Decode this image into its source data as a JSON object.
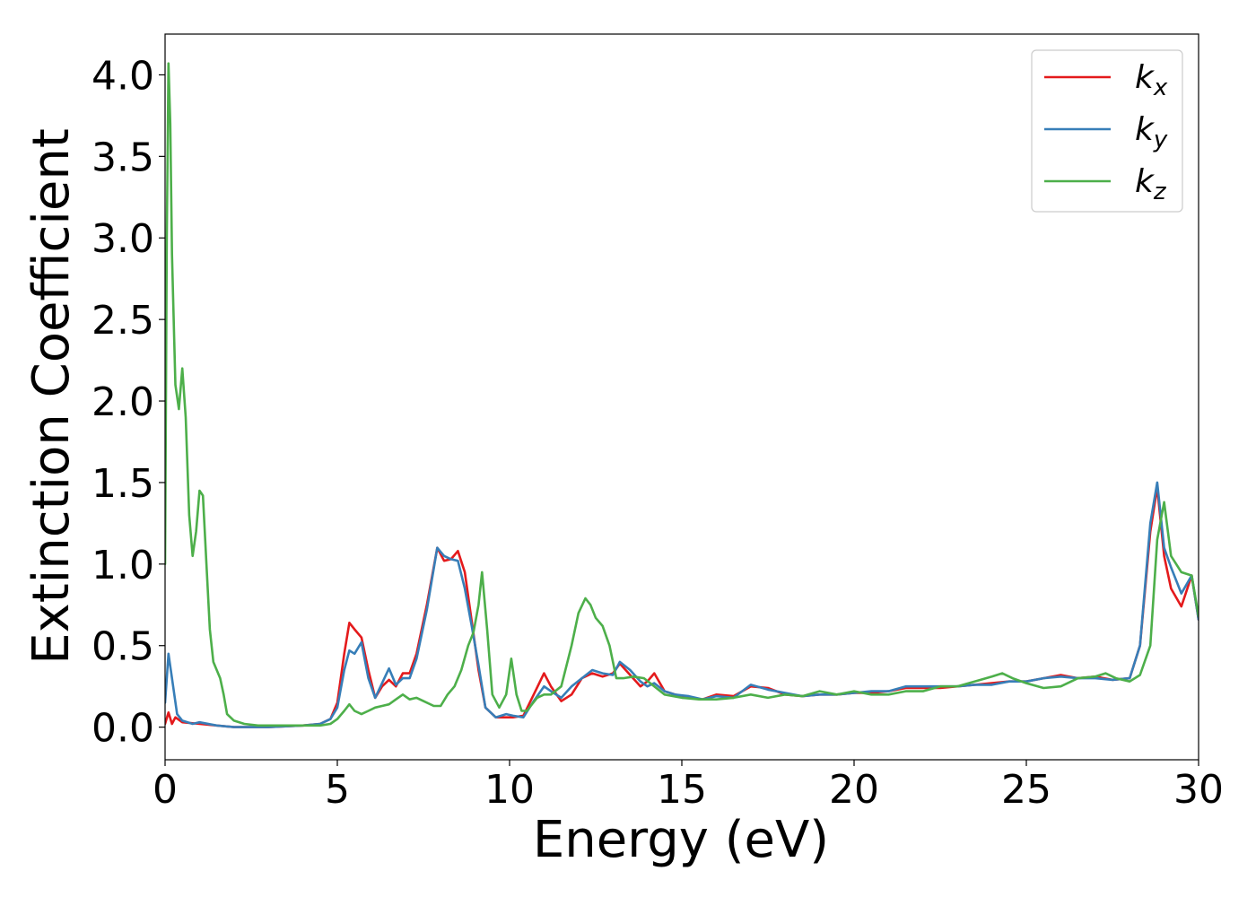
{
  "chart_data": {
    "type": "line",
    "xlabel": "Energy (eV)",
    "ylabel": "Extinction Coefficient",
    "xlim": [
      0,
      30
    ],
    "ylim": [
      -0.2,
      4.25
    ],
    "xticks": [
      0,
      5,
      10,
      15,
      20,
      25,
      30
    ],
    "xtick_labels": [
      "0",
      "5",
      "10",
      "15",
      "20",
      "25",
      "30"
    ],
    "yticks": [
      0.0,
      0.5,
      1.0,
      1.5,
      2.0,
      2.5,
      3.0,
      3.5,
      4.0
    ],
    "ytick_labels": [
      "0.0",
      "0.5",
      "1.0",
      "1.5",
      "2.0",
      "2.5",
      "3.0",
      "3.5",
      "4.0"
    ],
    "grid": false,
    "legend_position": "top-right",
    "series": [
      {
        "name": "k",
        "subscript": "x",
        "color": "#e41a1c",
        "x": [
          0,
          0.1,
          0.2,
          0.3,
          0.5,
          1.0,
          1.5,
          2.0,
          3.0,
          4.0,
          4.5,
          4.8,
          5.0,
          5.2,
          5.35,
          5.5,
          5.7,
          5.9,
          6.1,
          6.3,
          6.5,
          6.7,
          6.9,
          7.1,
          7.3,
          7.6,
          7.9,
          8.1,
          8.3,
          8.5,
          8.7,
          8.9,
          9.1,
          9.3,
          9.6,
          9.9,
          10.1,
          10.4,
          10.7,
          11.0,
          11.2,
          11.5,
          11.8,
          12.1,
          12.4,
          12.7,
          13.0,
          13.2,
          13.5,
          13.8,
          14.0,
          14.2,
          14.5,
          14.8,
          15.2,
          15.6,
          16.0,
          16.5,
          17.0,
          17.5,
          18.0,
          18.5,
          19.0,
          19.5,
          20.0,
          20.5,
          21.0,
          21.5,
          22.0,
          22.5,
          23.0,
          23.5,
          24.0,
          24.5,
          25.0,
          25.5,
          26.0,
          26.5,
          27.0,
          27.5,
          28.0,
          28.3,
          28.6,
          28.8,
          29.0,
          29.2,
          29.5,
          29.8,
          30.0
        ],
        "y": [
          0.02,
          0.09,
          0.02,
          0.06,
          0.03,
          0.02,
          0.01,
          0.0,
          0.0,
          0.01,
          0.02,
          0.05,
          0.15,
          0.45,
          0.64,
          0.6,
          0.55,
          0.35,
          0.18,
          0.25,
          0.29,
          0.25,
          0.33,
          0.33,
          0.45,
          0.75,
          1.1,
          1.02,
          1.03,
          1.08,
          0.95,
          0.65,
          0.35,
          0.12,
          0.06,
          0.06,
          0.06,
          0.07,
          0.2,
          0.33,
          0.25,
          0.16,
          0.2,
          0.3,
          0.33,
          0.31,
          0.33,
          0.39,
          0.32,
          0.25,
          0.28,
          0.33,
          0.22,
          0.2,
          0.18,
          0.17,
          0.2,
          0.19,
          0.25,
          0.24,
          0.2,
          0.19,
          0.2,
          0.2,
          0.21,
          0.21,
          0.22,
          0.24,
          0.24,
          0.24,
          0.25,
          0.26,
          0.27,
          0.28,
          0.28,
          0.3,
          0.32,
          0.3,
          0.31,
          0.29,
          0.3,
          0.5,
          1.2,
          1.47,
          1.05,
          0.85,
          0.74,
          0.93,
          0.66
        ]
      },
      {
        "name": "k",
        "subscript": "y",
        "color": "#377eb8",
        "x": [
          0,
          0.1,
          0.2,
          0.35,
          0.5,
          0.8,
          1.0,
          1.5,
          2.0,
          3.0,
          4.0,
          4.5,
          4.8,
          5.0,
          5.2,
          5.35,
          5.5,
          5.7,
          5.9,
          6.1,
          6.3,
          6.5,
          6.7,
          6.9,
          7.1,
          7.3,
          7.6,
          7.9,
          8.1,
          8.3,
          8.5,
          8.7,
          8.9,
          9.1,
          9.3,
          9.6,
          9.9,
          10.1,
          10.4,
          10.7,
          11.0,
          11.2,
          11.5,
          11.8,
          12.1,
          12.4,
          12.7,
          13.0,
          13.2,
          13.5,
          13.8,
          14.0,
          14.2,
          14.5,
          14.8,
          15.2,
          15.6,
          16.0,
          16.5,
          17.0,
          17.5,
          18.0,
          18.5,
          19.0,
          19.5,
          20.0,
          20.5,
          21.0,
          21.5,
          22.0,
          22.5,
          23.0,
          23.5,
          24.0,
          24.5,
          25.0,
          25.5,
          26.0,
          26.5,
          27.0,
          27.5,
          28.0,
          28.3,
          28.6,
          28.8,
          29.0,
          29.2,
          29.5,
          29.8,
          30.0
        ],
        "y": [
          0.15,
          0.45,
          0.3,
          0.08,
          0.04,
          0.02,
          0.03,
          0.01,
          0.0,
          0.0,
          0.01,
          0.02,
          0.05,
          0.12,
          0.35,
          0.47,
          0.45,
          0.52,
          0.3,
          0.18,
          0.27,
          0.36,
          0.26,
          0.3,
          0.3,
          0.42,
          0.72,
          1.1,
          1.05,
          1.03,
          1.02,
          0.85,
          0.62,
          0.38,
          0.12,
          0.06,
          0.08,
          0.07,
          0.06,
          0.16,
          0.25,
          0.22,
          0.18,
          0.25,
          0.3,
          0.35,
          0.33,
          0.32,
          0.4,
          0.35,
          0.28,
          0.25,
          0.27,
          0.22,
          0.2,
          0.19,
          0.17,
          0.19,
          0.18,
          0.26,
          0.23,
          0.21,
          0.19,
          0.2,
          0.2,
          0.21,
          0.22,
          0.22,
          0.25,
          0.25,
          0.25,
          0.25,
          0.26,
          0.26,
          0.28,
          0.28,
          0.3,
          0.31,
          0.3,
          0.3,
          0.29,
          0.3,
          0.5,
          1.25,
          1.5,
          1.1,
          0.98,
          0.82,
          0.93,
          0.66
        ]
      },
      {
        "name": "k",
        "subscript": "z",
        "color": "#4daf4a",
        "x": [
          0,
          0.05,
          0.1,
          0.15,
          0.2,
          0.3,
          0.4,
          0.5,
          0.6,
          0.7,
          0.8,
          0.9,
          1.0,
          1.1,
          1.2,
          1.3,
          1.4,
          1.5,
          1.6,
          1.7,
          1.8,
          2.0,
          2.3,
          2.7,
          3.5,
          4.0,
          4.5,
          4.8,
          5.0,
          5.2,
          5.35,
          5.5,
          5.7,
          5.9,
          6.1,
          6.3,
          6.5,
          6.7,
          6.9,
          7.1,
          7.3,
          7.5,
          7.8,
          8.0,
          8.2,
          8.4,
          8.6,
          8.8,
          8.95,
          9.1,
          9.2,
          9.35,
          9.5,
          9.7,
          9.9,
          10.05,
          10.2,
          10.35,
          10.5,
          10.8,
          11.0,
          11.2,
          11.5,
          11.8,
          12.0,
          12.2,
          12.35,
          12.5,
          12.7,
          12.9,
          13.1,
          13.3,
          13.6,
          13.9,
          14.2,
          14.5,
          15.0,
          15.5,
          16.0,
          16.5,
          17.0,
          17.5,
          18.0,
          18.5,
          19.0,
          19.5,
          20.0,
          20.5,
          21.0,
          21.5,
          22.0,
          22.5,
          23.0,
          23.5,
          24.0,
          24.3,
          24.6,
          25.0,
          25.5,
          26.0,
          26.5,
          27.0,
          27.3,
          27.6,
          28.0,
          28.3,
          28.6,
          28.8,
          29.0,
          29.2,
          29.5,
          29.8,
          30.0
        ],
        "y": [
          1.0,
          3.0,
          4.07,
          3.7,
          2.9,
          2.1,
          1.95,
          2.2,
          1.9,
          1.3,
          1.05,
          1.2,
          1.45,
          1.42,
          1.0,
          0.6,
          0.4,
          0.35,
          0.3,
          0.2,
          0.08,
          0.04,
          0.02,
          0.01,
          0.01,
          0.01,
          0.01,
          0.02,
          0.05,
          0.1,
          0.14,
          0.1,
          0.08,
          0.1,
          0.12,
          0.13,
          0.14,
          0.17,
          0.2,
          0.17,
          0.18,
          0.16,
          0.13,
          0.13,
          0.2,
          0.25,
          0.35,
          0.5,
          0.58,
          0.75,
          0.95,
          0.6,
          0.2,
          0.12,
          0.2,
          0.42,
          0.2,
          0.1,
          0.1,
          0.18,
          0.2,
          0.2,
          0.25,
          0.5,
          0.7,
          0.79,
          0.75,
          0.67,
          0.62,
          0.5,
          0.3,
          0.3,
          0.31,
          0.3,
          0.25,
          0.2,
          0.18,
          0.17,
          0.17,
          0.18,
          0.2,
          0.18,
          0.2,
          0.19,
          0.22,
          0.2,
          0.22,
          0.2,
          0.2,
          0.22,
          0.22,
          0.25,
          0.25,
          0.28,
          0.31,
          0.33,
          0.3,
          0.27,
          0.24,
          0.25,
          0.3,
          0.31,
          0.33,
          0.3,
          0.28,
          0.32,
          0.5,
          1.15,
          1.38,
          1.05,
          0.95,
          0.93,
          0.68
        ]
      }
    ]
  }
}
